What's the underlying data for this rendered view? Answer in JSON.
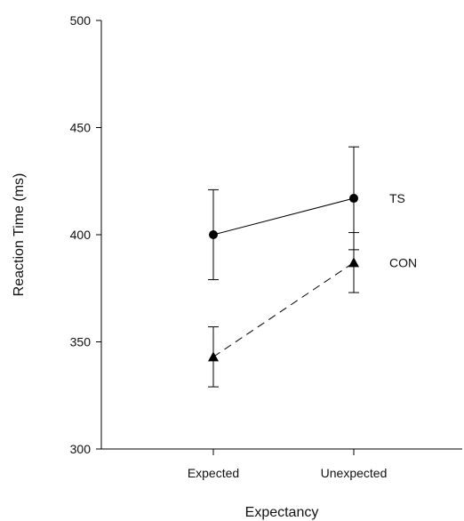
{
  "chart_data": {
    "type": "line",
    "xlabel": "Expectancy",
    "ylabel": "Reaction Time (ms)",
    "categories": [
      "Expected",
      "Unexpected"
    ],
    "ylim": [
      300,
      500
    ],
    "yticks": [
      300,
      350,
      400,
      450,
      500
    ],
    "grid": false,
    "legend": "inline labels at right end of lines",
    "series": [
      {
        "name": "TS",
        "marker": "circle",
        "line_style": "solid",
        "values": [
          400,
          417
        ],
        "error_upper": [
          421,
          441
        ],
        "error_lower": [
          379,
          393
        ]
      },
      {
        "name": "CON",
        "marker": "triangle",
        "line_style": "dashed",
        "values": [
          343,
          387
        ],
        "error_upper": [
          357,
          401
        ],
        "error_lower": [
          329,
          373
        ]
      }
    ]
  }
}
